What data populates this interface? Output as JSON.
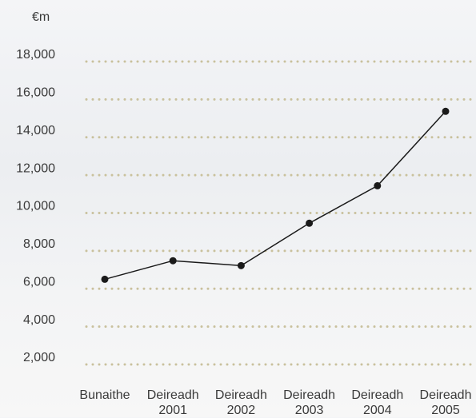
{
  "chart_data": {
    "type": "line",
    "y_label": "€m",
    "categories": [
      "Bunaithe",
      "Deireadh 2001",
      "Deireadh 2002",
      "Deireadh 2003",
      "Deireadh 2004",
      "Deireadh 2005"
    ],
    "series": [
      {
        "name": null,
        "color": "#1a1a1a",
        "values": [
          6500,
          7480,
          7220,
          9460,
          11440,
          15370
        ]
      }
    ],
    "ylim": [
      0,
      20000
    ],
    "yticks": [
      {
        "value": 2000,
        "label": "2,000"
      },
      {
        "value": 4000,
        "label": "4,000"
      },
      {
        "value": 6000,
        "label": "6,000"
      },
      {
        "value": 8000,
        "label": "8,000"
      },
      {
        "value": 10000,
        "label": "10,000"
      },
      {
        "value": 12000,
        "label": "12,000"
      },
      {
        "value": 14000,
        "label": "14,000"
      },
      {
        "value": 16000,
        "label": "16,000"
      },
      {
        "value": 18000,
        "label": "18,000"
      }
    ],
    "grid": true,
    "grid_color": "#c9c19d"
  }
}
